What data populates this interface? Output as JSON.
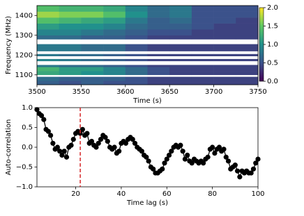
{
  "chart_data": [
    {
      "type": "heatmap",
      "xlabel": "Time (s)",
      "ylabel": "Frequency (MHz)",
      "xlim": [
        3500,
        3750
      ],
      "xticks": [
        3500,
        3550,
        3600,
        3650,
        3700,
        3750
      ],
      "ylim": [
        1050,
        1450
      ],
      "yticks": [
        1100,
        1200,
        1300,
        1400
      ],
      "colormap": "viridis",
      "xbins": [
        3500,
        3525,
        3550,
        3575,
        3600,
        3625,
        3650,
        3675,
        3700,
        3725,
        3750
      ],
      "ybins": [
        1050,
        1070,
        1090,
        1100,
        1120,
        1140,
        1150,
        1170,
        1180,
        1195,
        1205,
        1220,
        1255,
        1280,
        1300,
        1330,
        1360,
        1390,
        1420,
        1450
      ],
      "values": [
        [
          0.6,
          0.5,
          0.6,
          0.5,
          0.5,
          0.4,
          0.4,
          0.4,
          0.4,
          0.4
        ],
        [
          0.7,
          0.6,
          0.6,
          0.6,
          0.5,
          0.4,
          0.4,
          0.4,
          0.4,
          0.4
        ],
        [
          null,
          null,
          null,
          null,
          null,
          null,
          null,
          null,
          null,
          null
        ],
        [
          1.2,
          1.1,
          1.0,
          0.9,
          0.7,
          0.5,
          0.4,
          0.4,
          0.4,
          0.4
        ],
        [
          1.3,
          1.1,
          1.1,
          0.9,
          0.7,
          0.5,
          0.4,
          0.4,
          0.4,
          0.4
        ],
        [
          0.8,
          0.7,
          0.7,
          0.6,
          0.5,
          0.4,
          0.4,
          0.4,
          0.4,
          0.4
        ],
        [
          null,
          null,
          null,
          null,
          null,
          null,
          null,
          null,
          null,
          null
        ],
        [
          0.9,
          0.8,
          0.7,
          0.6,
          0.5,
          0.4,
          0.4,
          0.4,
          0.4,
          0.4
        ],
        [
          null,
          null,
          null,
          null,
          null,
          null,
          null,
          null,
          null,
          null
        ],
        [
          0.8,
          0.7,
          0.7,
          0.6,
          0.5,
          0.4,
          0.4,
          0.4,
          0.4,
          0.4
        ],
        [
          null,
          null,
          null,
          null,
          null,
          null,
          null,
          null,
          null,
          null
        ],
        [
          0.8,
          0.8,
          0.7,
          0.7,
          0.5,
          0.4,
          0.4,
          0.4,
          0.4,
          0.4
        ],
        [
          null,
          null,
          null,
          null,
          null,
          null,
          null,
          null,
          null,
          null
        ],
        [
          0.7,
          0.7,
          0.6,
          0.6,
          0.5,
          0.4,
          0.4,
          0.4,
          0.4,
          0.4
        ],
        [
          0.9,
          0.9,
          0.8,
          0.7,
          0.6,
          0.5,
          0.5,
          0.4,
          0.4,
          0.4
        ],
        [
          1.1,
          1.0,
          1.0,
          0.9,
          0.7,
          0.6,
          0.6,
          0.5,
          0.4,
          0.4
        ],
        [
          1.4,
          1.3,
          1.2,
          1.1,
          0.8,
          0.6,
          0.7,
          0.5,
          0.5,
          0.4
        ],
        [
          1.7,
          1.6,
          1.6,
          1.4,
          1.0,
          0.7,
          0.8,
          0.5,
          0.5,
          0.5
        ],
        [
          1.4,
          1.3,
          1.3,
          1.2,
          0.9,
          0.7,
          0.8,
          0.5,
          0.5,
          0.5
        ]
      ],
      "colorbar": {
        "clim": [
          0,
          2
        ],
        "ticks": [
          {
            "value": 0,
            "label": "0.0"
          },
          {
            "value": 0.5,
            "label": "0.5"
          },
          {
            "value": 1,
            "label": "1.0"
          },
          {
            "value": 1.5,
            "label": "1.5"
          },
          {
            "value": 2,
            "label": "2.0"
          }
        ]
      }
    },
    {
      "type": "line",
      "xlabel": "Time lag (s)",
      "ylabel": "Auto-correlation",
      "xlim": [
        3,
        100
      ],
      "xticks": [
        20,
        40,
        60,
        80,
        100
      ],
      "ylim": [
        -1,
        1
      ],
      "yticks": [
        {
          "value": -1,
          "label": "−1.0"
        },
        {
          "value": -0.5,
          "label": "−0.5"
        },
        {
          "value": 0,
          "label": "0.0"
        },
        {
          "value": 0.5,
          "label": "0.5"
        },
        {
          "value": 1,
          "label": "1.0"
        }
      ],
      "vline": {
        "x": 22,
        "color": "#d62728"
      },
      "x": [
        3,
        4,
        5,
        6,
        7,
        8,
        9,
        10,
        11,
        12,
        13,
        14,
        15,
        16,
        17,
        18,
        19,
        20,
        21,
        22,
        23,
        24,
        25,
        26,
        27,
        28,
        29,
        30,
        31,
        32,
        33,
        34,
        35,
        36,
        37,
        38,
        39,
        40,
        41,
        42,
        43,
        44,
        45,
        46,
        47,
        48,
        49,
        50,
        51,
        52,
        53,
        54,
        55,
        56,
        57,
        58,
        59,
        60,
        61,
        62,
        63,
        64,
        65,
        66,
        67,
        68,
        69,
        70,
        71,
        72,
        73,
        74,
        75,
        76,
        77,
        78,
        79,
        80,
        81,
        82,
        83,
        84,
        85,
        86,
        87,
        88,
        89,
        90,
        91,
        92,
        93,
        94,
        95,
        96,
        97,
        98,
        99,
        100
      ],
      "series": [
        {
          "color": "#000000",
          "values": [
            0.95,
            0.85,
            0.8,
            0.7,
            0.45,
            0.4,
            0.3,
            0.1,
            -0.05,
            0.0,
            -0.1,
            -0.2,
            -0.1,
            -0.25,
            0.0,
            0.05,
            0.2,
            0.35,
            0.4,
            0.35,
            0.45,
            0.3,
            0.35,
            0.1,
            0.15,
            0.05,
            0.0,
            0.1,
            0.2,
            0.3,
            0.25,
            0.15,
            0.0,
            -0.05,
            0.0,
            -0.15,
            -0.1,
            0.1,
            0.15,
            0.1,
            0.2,
            0.25,
            0.2,
            0.1,
            0.0,
            -0.05,
            -0.1,
            -0.2,
            -0.25,
            -0.35,
            -0.5,
            -0.55,
            -0.65,
            -0.65,
            -0.6,
            -0.55,
            -0.4,
            -0.3,
            -0.2,
            -0.1,
            0.0,
            0.05,
            0.0,
            0.05,
            -0.1,
            -0.3,
            -0.2,
            -0.35,
            -0.4,
            -0.3,
            -0.35,
            -0.4,
            -0.35,
            -0.4,
            -0.3,
            -0.25,
            -0.05,
            0.0,
            -0.15,
            -0.05,
            0.0,
            -0.1,
            -0.05,
            -0.25,
            -0.35,
            -0.55,
            -0.5,
            -0.45,
            -0.6,
            -0.75,
            -0.6,
            -0.65,
            -0.6,
            -0.65,
            -0.65,
            -0.55,
            -0.4,
            -0.3
          ]
        }
      ]
    }
  ]
}
